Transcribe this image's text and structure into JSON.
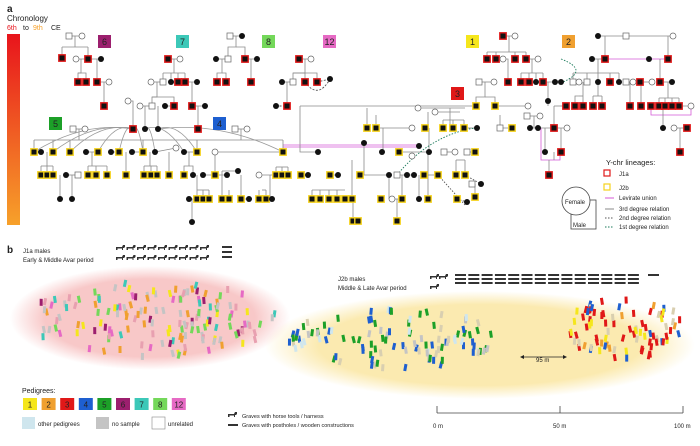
{
  "panel_a": {
    "label": "a",
    "chronology": {
      "title": "Chronology",
      "start": "6th",
      "to": "to",
      "end": "9th",
      "era": "CE",
      "start_color": "#e8141c",
      "end_color": "#f7a12a"
    },
    "pedigree_tags": [
      {
        "id": "6",
        "color": "#9c1f6e"
      },
      {
        "id": "7",
        "color": "#3cc8b8"
      },
      {
        "id": "8",
        "color": "#74d85a"
      },
      {
        "id": "12",
        "color": "#e66ac4"
      },
      {
        "id": "1",
        "color": "#f5e61c"
      },
      {
        "id": "2",
        "color": "#f0a030"
      },
      {
        "id": "3",
        "color": "#e01818"
      },
      {
        "id": "5",
        "color": "#1ca028"
      },
      {
        "id": "4",
        "color": "#1e5fd0"
      }
    ],
    "legend": {
      "title": "Y-chr lineages:",
      "j1a": {
        "label": "J1a",
        "color": "#e01818"
      },
      "j2b": {
        "label": "J2b",
        "color": "#f5d21c"
      },
      "levirate": {
        "label": "Levirate union",
        "color": "#d45ad6"
      },
      "third": {
        "label": "3rd degree relation",
        "color": "#888888"
      },
      "second": {
        "label": "2nd degree relation",
        "color": "#555555"
      },
      "first": {
        "label": "1st degree relation",
        "color": "#1a7a5a"
      },
      "female": "Female",
      "male": "Male"
    }
  },
  "panel_b": {
    "label": "b",
    "j1a_group": {
      "title": "J1a males",
      "period": "Early & Middle Avar period",
      "horse_graves": 18,
      "posthole_graves": 3
    },
    "j2b_group": {
      "title": "J2b males",
      "period": "Middle & Late Avar period",
      "horse_graves": 3,
      "posthole_graves": 43
    },
    "zone_colors": {
      "j1a": "#f8c8c8",
      "j2b": "#fbeab0"
    },
    "distance_label": "95 m",
    "scale": {
      "ticks": [
        "0 m",
        "50 m",
        "100 m"
      ]
    },
    "pedigrees_legend": {
      "title": "Pedigrees:",
      "items": [
        {
          "id": "1",
          "color": "#f5e61c"
        },
        {
          "id": "2",
          "color": "#f0a030"
        },
        {
          "id": "3",
          "color": "#e01818"
        },
        {
          "id": "4",
          "color": "#1e5fd0"
        },
        {
          "id": "5",
          "color": "#1ca028"
        },
        {
          "id": "6",
          "color": "#9c1f6e"
        },
        {
          "id": "7",
          "color": "#3cc8b8"
        },
        {
          "id": "8",
          "color": "#74d85a"
        },
        {
          "id": "12",
          "color": "#e66ac4"
        }
      ],
      "other": {
        "label": "other pedigrees",
        "color": "#cfe6ee"
      },
      "no_sample": {
        "label": "no sample",
        "color": "#c4c4c4"
      },
      "unrelated": {
        "label": "unrelated",
        "color": "#ffffff"
      }
    },
    "symbols_legend": {
      "horse": "Graves with horse tools / harness",
      "posthole": "Graves with postholes / wooden constructions"
    }
  }
}
